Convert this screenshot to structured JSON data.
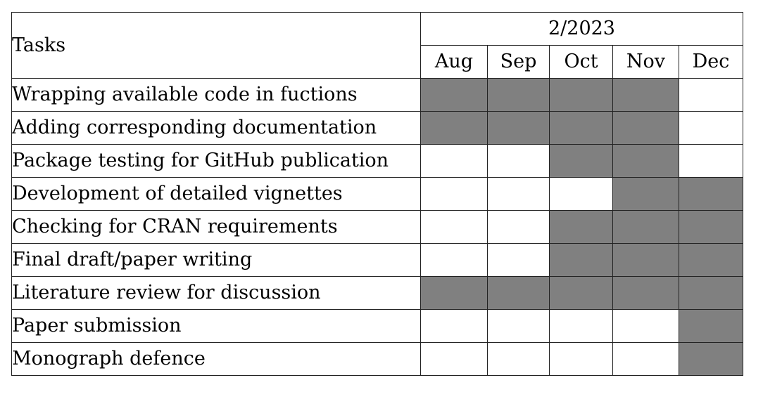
{
  "header": {
    "tasks_label": "Tasks",
    "year_label": "2/2023",
    "months": [
      "Aug",
      "Sep",
      "Oct",
      "Nov",
      "Dec"
    ]
  },
  "rows": [
    {
      "task": "Wrapping available code in fuctions",
      "active": [
        true,
        true,
        true,
        true,
        false
      ]
    },
    {
      "task": "Adding corresponding documentation",
      "active": [
        true,
        true,
        true,
        true,
        false
      ]
    },
    {
      "task": "Package testing for GitHub publication",
      "active": [
        false,
        false,
        true,
        true,
        false
      ]
    },
    {
      "task": "Development of detailed vignettes",
      "active": [
        false,
        false,
        false,
        true,
        true
      ]
    },
    {
      "task": "Checking for CRAN requirements",
      "active": [
        false,
        false,
        true,
        true,
        true
      ]
    },
    {
      "task": "Final draft/paper writing",
      "active": [
        false,
        false,
        true,
        true,
        true
      ]
    },
    {
      "task": "Literature review for discussion",
      "active": [
        true,
        true,
        true,
        true,
        true
      ]
    },
    {
      "task": "Paper submission",
      "active": [
        false,
        false,
        false,
        false,
        true
      ]
    },
    {
      "task": "Monograph defence",
      "active": [
        false,
        false,
        false,
        false,
        true
      ]
    }
  ],
  "colors": {
    "active_fill": "#808080",
    "inactive_fill": "#ffffff",
    "border": "#222222"
  }
}
